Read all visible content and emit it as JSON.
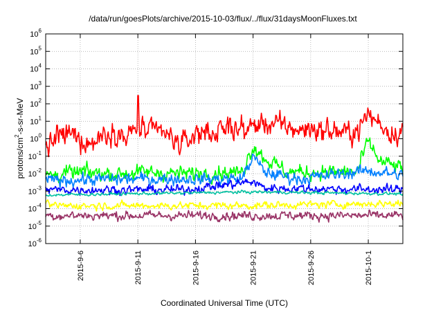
{
  "chart_data": {
    "type": "line",
    "title": "/data/run/goesPlots/archive/2015-10-03/flux/../flux/31daysMoonFluxes.txt",
    "xlabel": "Coordinated Universal Time (UTC)",
    "ylabel_parts": [
      "protons/cm",
      "2",
      "-s-sr-MeV"
    ],
    "y_scale": "log",
    "ylim": [
      1e-06,
      1000000.0
    ],
    "xlim": [
      "2015-09-03",
      "2015-10-04"
    ],
    "grid": true,
    "x_ticks": [
      "2015-9-6",
      "2015-9-11",
      "2015-9-16",
      "2015-9-21",
      "2015-9-26",
      "2015-10-1"
    ],
    "y_ticks": [
      {
        "base": "10",
        "exp": "-6"
      },
      {
        "base": "10",
        "exp": "-5"
      },
      {
        "base": "10",
        "exp": "-4"
      },
      {
        "base": "10",
        "exp": "-3"
      },
      {
        "base": "10",
        "exp": "-2"
      },
      {
        "base": "10",
        "exp": "-1"
      },
      {
        "base": "10",
        "exp": "0"
      },
      {
        "base": "10",
        "exp": "1"
      },
      {
        "base": "10",
        "exp": "2"
      },
      {
        "base": "10",
        "exp": "3"
      },
      {
        "base": "10",
        "exp": "4"
      },
      {
        "base": "10",
        "exp": "5"
      },
      {
        "base": "10",
        "exp": "6"
      }
    ],
    "series": [
      {
        "color": "#ff0000",
        "x": [
          "2015-09-03",
          "2015-09-04",
          "2015-09-05",
          "2015-09-06",
          "2015-09-07",
          "2015-09-08",
          "2015-09-09",
          "2015-09-10",
          "2015-09-11",
          "2015-09-12",
          "2015-09-13",
          "2015-09-14",
          "2015-09-15",
          "2015-09-16",
          "2015-09-17",
          "2015-09-18",
          "2015-09-19",
          "2015-09-20",
          "2015-09-21",
          "2015-09-22",
          "2015-09-23",
          "2015-09-24",
          "2015-09-25",
          "2015-09-26",
          "2015-09-27",
          "2015-09-28",
          "2015-09-29",
          "2015-09-30",
          "2015-10-01",
          "2015-10-02",
          "2015-10-03",
          "2015-10-04"
        ],
        "y": [
          0.3,
          1,
          2,
          1,
          0.5,
          2,
          3,
          1,
          5,
          2,
          3,
          0.8,
          0.5,
          2,
          3,
          2,
          5,
          3,
          5,
          8,
          6,
          5,
          3,
          4,
          3,
          3,
          2,
          3,
          20,
          8,
          2,
          3
        ],
        "volatility": 1.5,
        "spikes": [
          [
            "2015-09-11",
            300
          ],
          [
            "2015-10-01",
            40
          ],
          [
            "2015-09-19",
            15
          ],
          [
            "2015-09-04",
            6
          ]
        ]
      },
      {
        "color": "#00ff00",
        "x": [
          "2015-09-03",
          "2015-09-06",
          "2015-09-09",
          "2015-09-12",
          "2015-09-15",
          "2015-09-18",
          "2015-09-20",
          "2015-09-21",
          "2015-09-22",
          "2015-09-24",
          "2015-09-27",
          "2015-09-30",
          "2015-10-01",
          "2015-10-02",
          "2015-10-04"
        ],
        "y": [
          0.008,
          0.012,
          0.01,
          0.012,
          0.01,
          0.012,
          0.012,
          0.4,
          0.08,
          0.012,
          0.012,
          0.012,
          0.7,
          0.05,
          0.02
        ],
        "volatility": 1.0,
        "spikes": []
      },
      {
        "color": "#0080ff",
        "x": [
          "2015-09-03",
          "2015-09-10",
          "2015-09-20",
          "2015-09-21",
          "2015-09-22",
          "2015-09-25",
          "2015-10-01",
          "2015-10-04"
        ],
        "y": [
          0.004,
          0.005,
          0.005,
          0.1,
          0.012,
          0.005,
          0.015,
          0.008
        ],
        "volatility": 0.8,
        "spikes": []
      },
      {
        "color": "#0000ff",
        "x": [
          "2015-09-03",
          "2015-09-15",
          "2015-09-21",
          "2015-09-22",
          "2015-10-04"
        ],
        "y": [
          0.0012,
          0.0012,
          0.0035,
          0.0015,
          0.0012
        ],
        "volatility": 0.6,
        "spikes": []
      },
      {
        "color": "#00c0a0",
        "x": [
          "2015-09-03",
          "2015-09-21",
          "2015-10-04"
        ],
        "y": [
          0.0006,
          0.0009,
          0.0007
        ],
        "volatility": 0.2,
        "spikes": []
      },
      {
        "color": "#ffff00",
        "x": [
          "2015-09-03",
          "2015-09-20",
          "2015-10-04"
        ],
        "y": [
          0.00015,
          0.00015,
          0.0002
        ],
        "volatility": 0.5,
        "spikes": []
      },
      {
        "color": "#993366",
        "x": [
          "2015-09-03",
          "2015-10-04"
        ],
        "y": [
          4e-05,
          4e-05
        ],
        "volatility": 0.6,
        "spikes": []
      }
    ]
  }
}
